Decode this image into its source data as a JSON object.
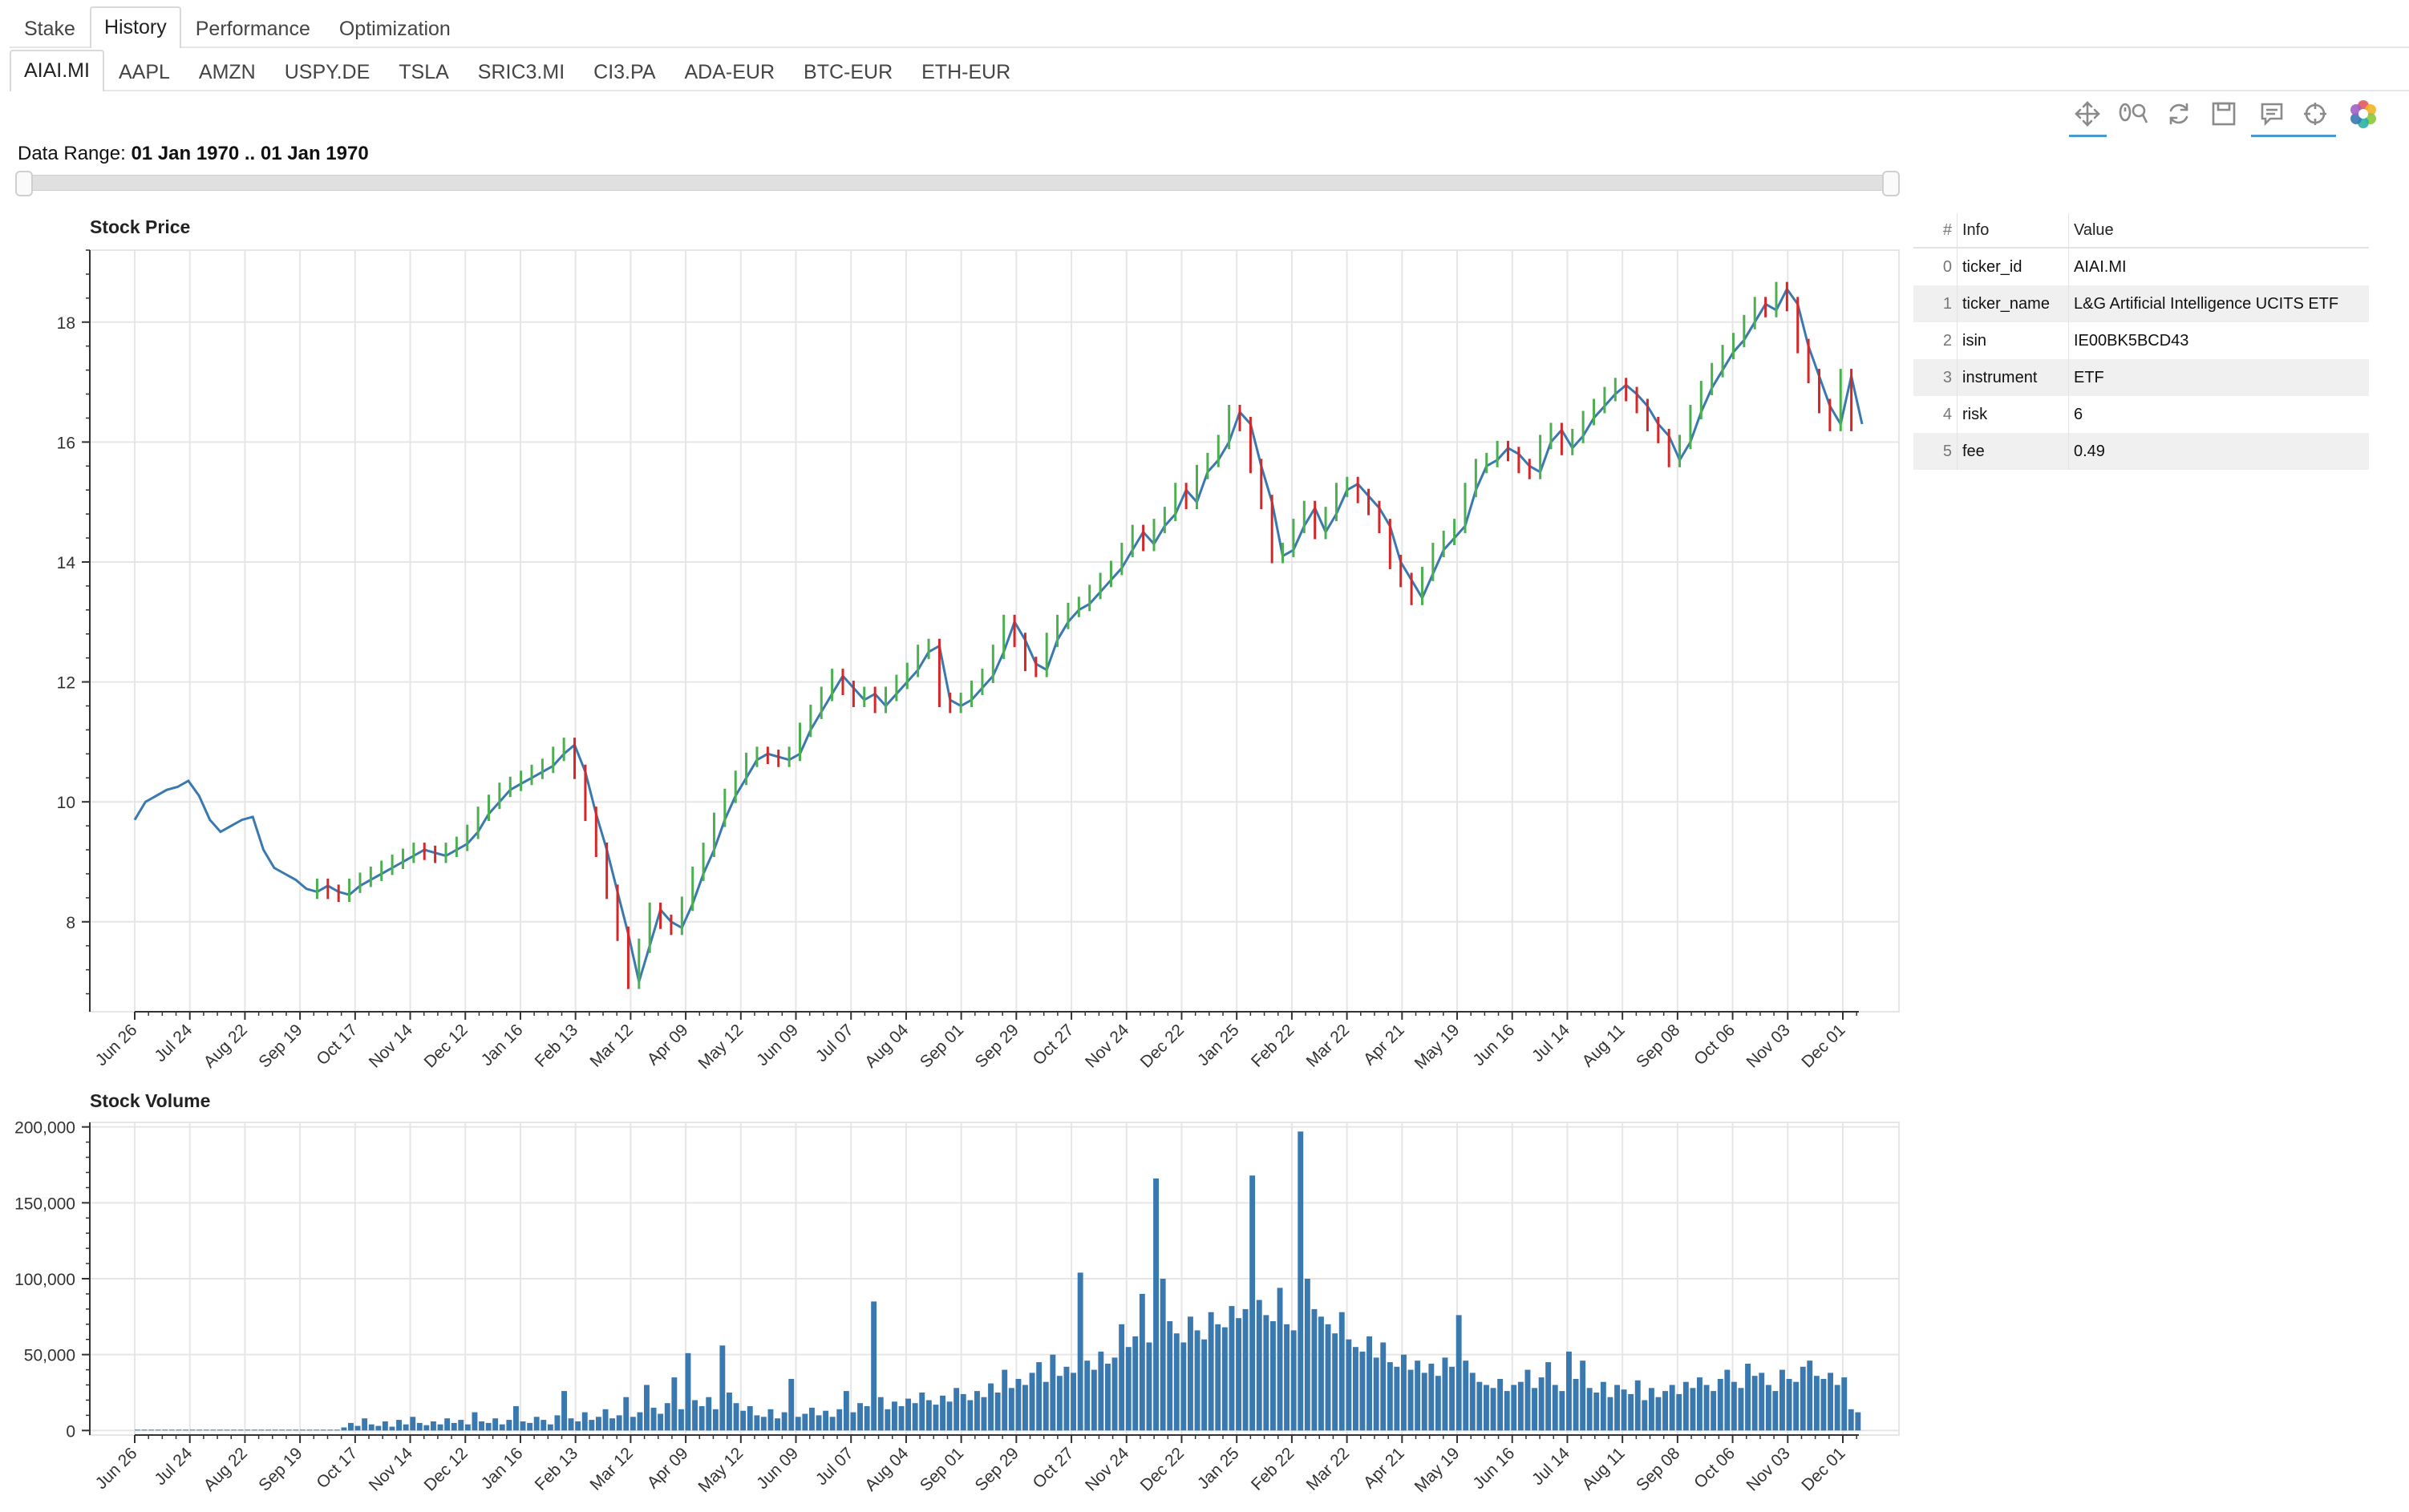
{
  "tabs": [
    {
      "label": "Stake"
    },
    {
      "label": "History"
    },
    {
      "label": "Performance"
    },
    {
      "label": "Optimization"
    }
  ],
  "tickers": [
    {
      "label": "AIAI.MI"
    },
    {
      "label": "AAPL"
    },
    {
      "label": "AMZN"
    },
    {
      "label": "USPY.DE"
    },
    {
      "label": "TSLA"
    },
    {
      "label": "SRIC3.MI"
    },
    {
      "label": "CI3.PA"
    },
    {
      "label": "ADA-EUR"
    },
    {
      "label": "BTC-EUR"
    },
    {
      "label": "ETH-EUR"
    }
  ],
  "toolbar": {
    "tools": [
      "pan-icon",
      "wheel-zoom-icon",
      "reset-icon",
      "save-icon",
      "hover-icon",
      "crosshair-icon",
      "bokeh-logo-icon"
    ],
    "accent": "#4a98d4"
  },
  "range": {
    "label": "Data Range:",
    "value": "01 Jan 1970 .. 01 Jan 1970"
  },
  "info_table": {
    "headers": {
      "idx": "#",
      "info": "Info",
      "value": "Value"
    },
    "rows": [
      {
        "idx": "0",
        "info": "ticker_id",
        "value": "AIAI.MI"
      },
      {
        "idx": "1",
        "info": "ticker_name",
        "value": "L&G Artificial Intelligence UCITS ETF"
      },
      {
        "idx": "2",
        "info": "isin",
        "value": "IE00BK5BCD43"
      },
      {
        "idx": "3",
        "info": "instrument",
        "value": "ETF"
      },
      {
        "idx": "4",
        "info": "risk",
        "value": "6"
      },
      {
        "idx": "5",
        "info": "fee",
        "value": "0.49"
      }
    ]
  },
  "chart_data": [
    {
      "type": "line",
      "title": "Stock Price",
      "xlabel": "",
      "ylabel": "",
      "ylim": [
        6.5,
        19.2
      ],
      "yticks": [
        8,
        10,
        12,
        14,
        16,
        18
      ],
      "xticks": [
        "Jun 26",
        "Jul 24",
        "Aug 22",
        "Sep 19",
        "Oct 17",
        "Nov 14",
        "Dec 12",
        "Jan 16",
        "Feb 13",
        "Mar 12",
        "Apr 09",
        "May 12",
        "Jun 09",
        "Jul 07",
        "Aug 04",
        "Sep 01",
        "Sep 29",
        "Oct 27",
        "Nov 24",
        "Dec 22",
        "Jan 25",
        "Feb 22",
        "Mar 22",
        "Apr 21",
        "May 19",
        "Jun 16",
        "Jul 14",
        "Aug 11",
        "Sep 08",
        "Oct 06",
        "Nov 03",
        "Dec 01"
      ],
      "grid": true,
      "colors": {
        "line": "#3a78b0",
        "up": "#4caf50",
        "down": "#d62728"
      },
      "series": [
        {
          "values": [
            9.7,
            10.0,
            10.1,
            10.2,
            10.25,
            10.35,
            10.1,
            9.7,
            9.5,
            9.6,
            9.7,
            9.75,
            9.2,
            8.9,
            8.8,
            8.7,
            8.55,
            8.5,
            8.6,
            8.5,
            8.45,
            8.6,
            8.7,
            8.8,
            8.9,
            9.0,
            9.1,
            9.2,
            9.15,
            9.1,
            9.2,
            9.3,
            9.5,
            9.8,
            10.0,
            10.2,
            10.3,
            10.4,
            10.5,
            10.6,
            10.8,
            10.95,
            10.5,
            9.8,
            9.2,
            8.5,
            7.8,
            7.0,
            7.6,
            8.2,
            8.0,
            7.9,
            8.3,
            8.8,
            9.2,
            9.7,
            10.1,
            10.4,
            10.7,
            10.8,
            10.75,
            10.7,
            10.8,
            11.2,
            11.5,
            11.8,
            12.1,
            11.9,
            11.7,
            11.8,
            11.6,
            11.8,
            12.0,
            12.2,
            12.5,
            12.6,
            11.7,
            11.6,
            11.7,
            11.9,
            12.1,
            12.5,
            13.0,
            12.7,
            12.3,
            12.2,
            12.7,
            13.0,
            13.2,
            13.3,
            13.5,
            13.7,
            13.9,
            14.2,
            14.5,
            14.3,
            14.6,
            14.8,
            15.2,
            15.0,
            15.5,
            15.7,
            16.0,
            16.5,
            16.3,
            15.6,
            15.0,
            14.1,
            14.2,
            14.6,
            14.9,
            14.5,
            14.8,
            15.2,
            15.3,
            15.1,
            14.9,
            14.6,
            14.0,
            13.7,
            13.4,
            13.8,
            14.2,
            14.4,
            14.6,
            15.2,
            15.6,
            15.7,
            15.9,
            15.8,
            15.6,
            15.5,
            16.0,
            16.2,
            15.9,
            16.1,
            16.4,
            16.6,
            16.8,
            16.95,
            16.8,
            16.6,
            16.3,
            16.1,
            15.7,
            16.0,
            16.5,
            16.9,
            17.2,
            17.5,
            17.7,
            18.0,
            18.3,
            18.2,
            18.55,
            18.3,
            17.6,
            17.1,
            16.6,
            16.3,
            17.1,
            16.3
          ]
        }
      ]
    },
    {
      "type": "bar",
      "title": "Stock Volume",
      "xlabel": "",
      "ylabel": "",
      "ylim": [
        -3000,
        203000
      ],
      "yticks": [
        "0",
        "50,000",
        "100,000",
        "150,000",
        "200,000"
      ],
      "ytick_values": [
        0,
        50000,
        100000,
        150000,
        200000
      ],
      "xticks": [
        "Jun 26",
        "Jul 24",
        "Aug 22",
        "Sep 19",
        "Oct 17",
        "Nov 14",
        "Dec 12",
        "Jan 16",
        "Feb 13",
        "Mar 12",
        "Apr 09",
        "May 12",
        "Jun 09",
        "Jul 07",
        "Aug 04",
        "Sep 01",
        "Sep 29",
        "Oct 27",
        "Nov 24",
        "Dec 22",
        "Jan 25",
        "Feb 22",
        "Mar 22",
        "Apr 21",
        "May 19",
        "Jun 16",
        "Jul 14",
        "Aug 11",
        "Sep 08",
        "Oct 06",
        "Nov 03",
        "Dec 01"
      ],
      "grid": true,
      "colors": {
        "bar": "#3a78b0"
      },
      "series": [
        {
          "values": [
            0,
            0,
            0,
            0,
            0,
            0,
            0,
            0,
            0,
            0,
            0,
            0,
            0,
            0,
            0,
            0,
            0,
            0,
            0,
            0,
            0,
            0,
            0,
            0,
            0,
            0,
            0,
            0,
            0,
            0,
            2000,
            5000,
            3000,
            8000,
            4000,
            3000,
            6000,
            2500,
            7000,
            4000,
            9000,
            5000,
            3500,
            6000,
            4000,
            8000,
            5000,
            7000,
            4000,
            12000,
            6000,
            5000,
            8000,
            4000,
            7000,
            16000,
            6000,
            5000,
            9000,
            7000,
            4000,
            10000,
            26000,
            8000,
            6000,
            12000,
            7000,
            9000,
            14000,
            8000,
            10000,
            22000,
            9000,
            12000,
            30000,
            15000,
            11000,
            18000,
            35000,
            14000,
            51000,
            20000,
            16000,
            22000,
            14000,
            56000,
            25000,
            18000,
            13000,
            16000,
            10000,
            9000,
            14000,
            8000,
            12000,
            34000,
            9000,
            11000,
            15000,
            10000,
            13000,
            9000,
            14000,
            26000,
            12000,
            18000,
            16000,
            85000,
            22000,
            14000,
            19000,
            16000,
            21000,
            18000,
            25000,
            20000,
            17000,
            23000,
            19000,
            28000,
            24000,
            20000,
            26000,
            22000,
            31000,
            25000,
            40000,
            28000,
            34000,
            30000,
            38000,
            45000,
            32000,
            50000,
            36000,
            42000,
            38000,
            104000,
            46000,
            40000,
            52000,
            44000,
            48000,
            70000,
            55000,
            62000,
            90000,
            58000,
            166000,
            100000,
            72000,
            64000,
            58000,
            75000,
            66000,
            60000,
            78000,
            70000,
            68000,
            82000,
            74000,
            80000,
            168000,
            86000,
            76000,
            72000,
            94000,
            70000,
            66000,
            197000,
            100000,
            80000,
            75000,
            70000,
            64000,
            78000,
            60000,
            55000,
            52000,
            62000,
            48000,
            58000,
            45000,
            42000,
            50000,
            40000,
            46000,
            38000,
            44000,
            36000,
            48000,
            42000,
            76000,
            46000,
            38000,
            32000,
            30000,
            28000,
            34000,
            26000,
            30000,
            32000,
            40000,
            28000,
            35000,
            45000,
            30000,
            26000,
            52000,
            34000,
            46000,
            28000,
            25000,
            32000,
            22000,
            30000,
            27000,
            24000,
            33000,
            20000,
            28000,
            22000,
            26000,
            30000,
            24000,
            32000,
            28000,
            35000,
            30000,
            26000,
            34000,
            40000,
            32000,
            28000,
            44000,
            36000,
            38000,
            30000,
            26000,
            40000,
            34000,
            32000,
            42000,
            46000,
            36000,
            34000,
            38000,
            30000,
            35000,
            14000,
            12000
          ]
        }
      ]
    }
  ]
}
